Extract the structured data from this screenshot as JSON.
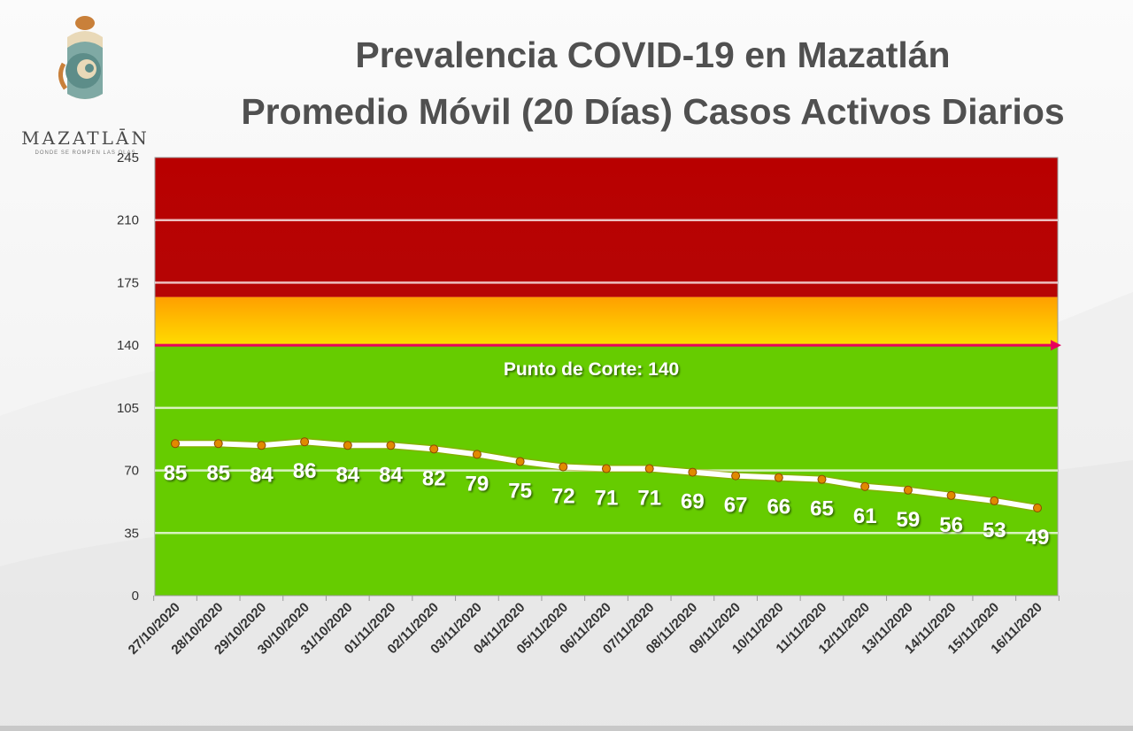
{
  "logo": {
    "wordmark": "MAZATLĀN",
    "tagline": "DONDE SE ROMPEN LAS OLAS"
  },
  "title_lines": [
    "Prevalencia COVID-19 en Mazatlán",
    "Promedio Móvil (20 Días) Casos Activos Diarios"
  ],
  "chart_data": {
    "type": "line",
    "title": "Prevalencia COVID-19 en Mazatlán",
    "subtitle": "Promedio Móvil (20 Días) Casos Activos Diarios",
    "x": [
      "27/10/2020",
      "28/10/2020",
      "29/10/2020",
      "30/10/2020",
      "31/10/2020",
      "01/11/2020",
      "02/11/2020",
      "03/11/2020",
      "04/11/2020",
      "05/11/2020",
      "06/11/2020",
      "07/11/2020",
      "08/11/2020",
      "09/11/2020",
      "10/11/2020",
      "11/11/2020",
      "12/11/2020",
      "13/11/2020",
      "14/11/2020",
      "15/11/2020",
      "16/11/2020"
    ],
    "series": [
      {
        "values": [
          85,
          85,
          84,
          86,
          84,
          84,
          82,
          79,
          75,
          72,
          71,
          71,
          69,
          67,
          66,
          65,
          61,
          59,
          56,
          53,
          49
        ]
      }
    ],
    "ylim": [
      0,
      245
    ],
    "yticks": [
      0,
      35,
      70,
      105,
      140,
      175,
      210,
      245
    ],
    "grid": true,
    "bands": [
      {
        "from": 0,
        "to": 140,
        "color": "#66cc00"
      },
      {
        "from": 140,
        "to": 167,
        "color": "#ffc000"
      },
      {
        "from": 167,
        "to": 245,
        "color": "#b30000"
      }
    ],
    "threshold": {
      "value": 140,
      "label": "Punto de Corte: 140",
      "color": "#e8005c"
    },
    "line_color": "#ffffff",
    "marker_color": "#e08a00"
  }
}
